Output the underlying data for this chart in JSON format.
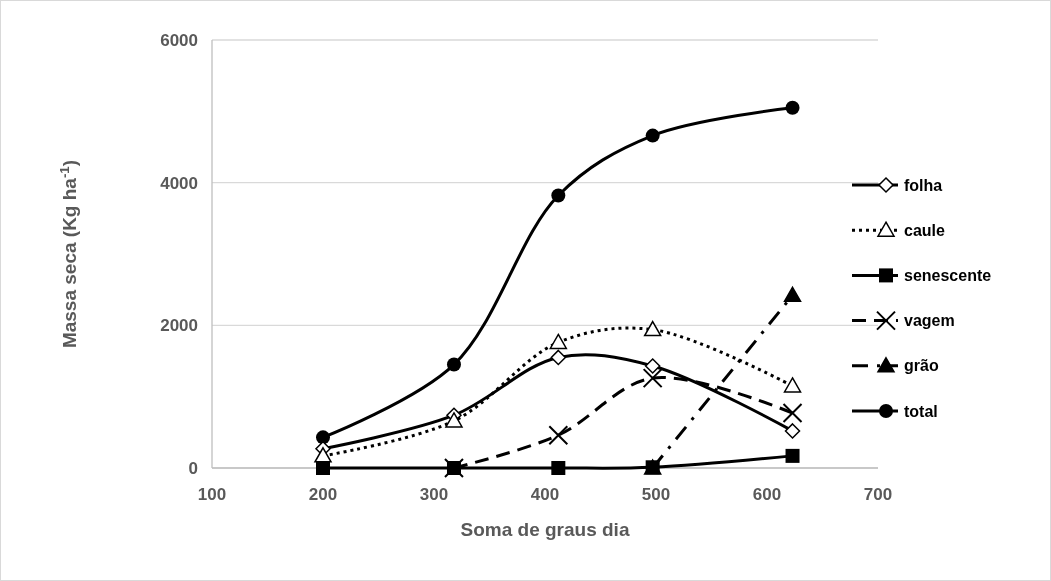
{
  "chart_data": {
    "type": "line",
    "xlabel": "Soma de graus dia",
    "ylabel": "Massa seca (Kg ha$^{-1}$)",
    "x": [
      200,
      318,
      412,
      497,
      623
    ],
    "xlim": [
      100,
      700
    ],
    "xticks": [
      100,
      200,
      300,
      400,
      500,
      600,
      700
    ],
    "ylim": [
      0,
      6000
    ],
    "yticks": [
      0,
      2000,
      4000,
      6000
    ],
    "grid": "y",
    "legend": "right",
    "series": [
      {
        "name": "folha",
        "color": "#000000",
        "marker": "diamond",
        "line_style": "solid",
        "values": [
          270,
          740,
          1550,
          1430,
          520
        ]
      },
      {
        "name": "caule",
        "color": "#000000",
        "marker": "triangle",
        "line_style": "dotted",
        "values": [
          170,
          660,
          1760,
          1940,
          1150
        ]
      },
      {
        "name": "senescente",
        "color": "#000000",
        "marker": "square",
        "line_style": "solid",
        "values": [
          0,
          0,
          0,
          10,
          170
        ]
      },
      {
        "name": "vagem",
        "color": "#000000",
        "marker": "cross",
        "line_style": "dashed",
        "values": [
          null,
          0,
          460,
          1260,
          770
        ]
      },
      {
        "name": "grão",
        "color": "#000000",
        "marker": "triangle",
        "line_style": "dashdot",
        "values": [
          null,
          null,
          null,
          0,
          2420
        ]
      },
      {
        "name": "total",
        "color": "#000000",
        "marker": "circle",
        "line_style": "solid",
        "values": [
          430,
          1450,
          3820,
          4660,
          5050
        ]
      }
    ]
  }
}
